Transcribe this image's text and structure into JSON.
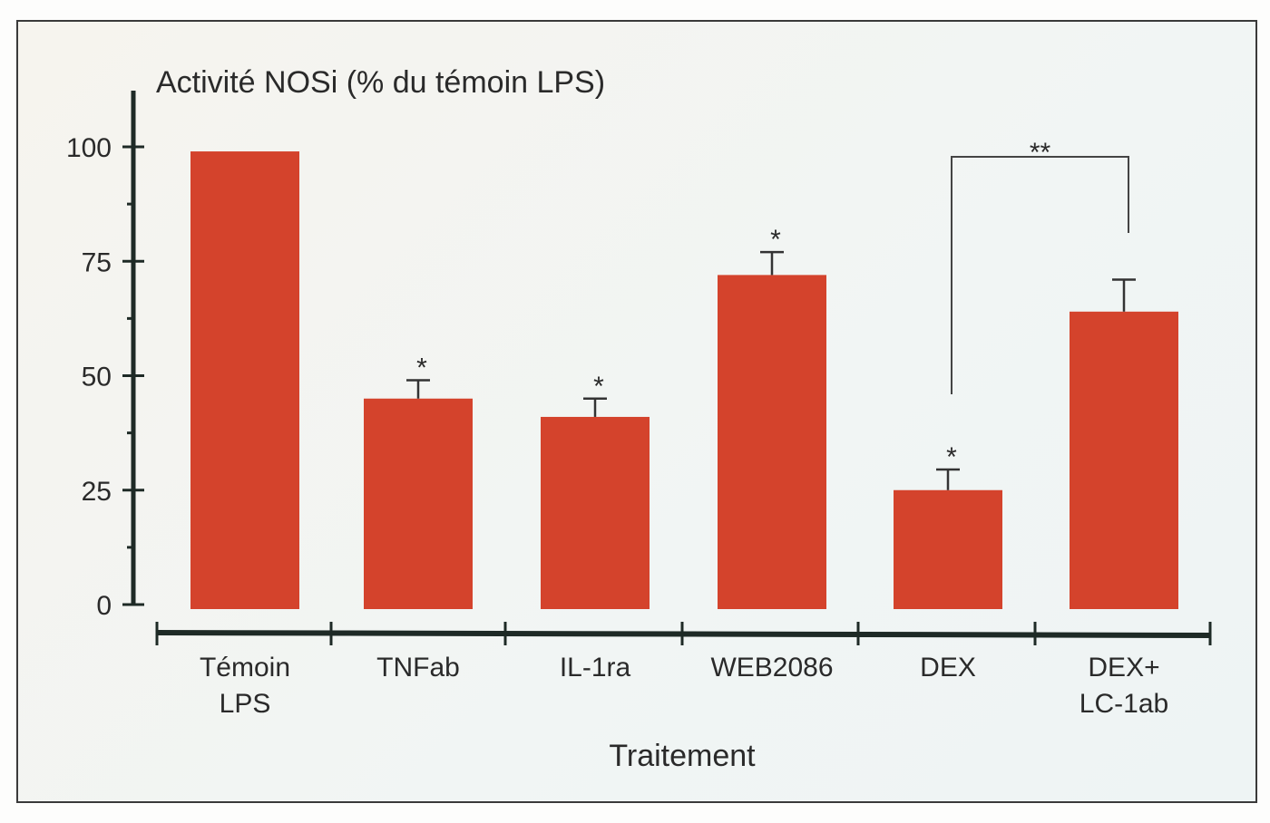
{
  "chart_data": {
    "type": "bar",
    "title": "",
    "ylabel": "Activité NOSi (% du témoin LPS)",
    "xlabel": "Traitement",
    "ylim": [
      0,
      110
    ],
    "yticks": [
      0,
      25,
      50,
      75,
      100
    ],
    "ytick_labels": [
      "0",
      "25",
      "50",
      "75",
      "100"
    ],
    "categories": [
      [
        "Témoin",
        "LPS"
      ],
      [
        "TNFab"
      ],
      [
        "IL-1ra"
      ],
      [
        "WEB2086"
      ],
      [
        "DEX"
      ],
      [
        "DEX+",
        "LC-1ab"
      ]
    ],
    "values": [
      99,
      45,
      41,
      72,
      25,
      64
    ],
    "error_upper": [
      null,
      49,
      45,
      77,
      29.5,
      71
    ],
    "significance": [
      "",
      "*",
      "*",
      "*",
      "*",
      ""
    ],
    "bracket": {
      "from": 4,
      "to": 5,
      "label": "**"
    },
    "grid": false,
    "bar_color": "#d4432c",
    "axis_color": "#1e2a26"
  }
}
